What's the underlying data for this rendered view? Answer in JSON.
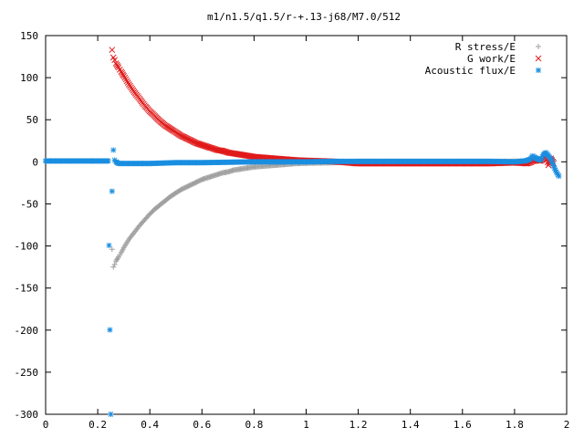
{
  "chart_data": {
    "type": "scatter",
    "title": "m1/n1.5/q1.5/r-+.13-j68/M7.0/512",
    "xlabel": "",
    "ylabel": "",
    "xlim": [
      0,
      2
    ],
    "ylim": [
      -300,
      150
    ],
    "x_ticks": [
      "0",
      "0.2",
      "0.4",
      "0.6",
      "0.8",
      "1",
      "1.2",
      "1.4",
      "1.6",
      "1.8",
      "2"
    ],
    "y_ticks": [
      "150",
      "100",
      "50",
      "0",
      "-50",
      "-100",
      "-150",
      "-200",
      "-250",
      "-300"
    ],
    "grid": false,
    "legend_position": "top-right",
    "series": [
      {
        "name": "R stress/E",
        "marker": "plus",
        "color": "#a0a0a0",
        "points": [
          [
            0.255,
            -104
          ],
          [
            0.26,
            -125
          ],
          [
            0.265,
            -122
          ],
          [
            0.27,
            -118
          ],
          [
            0.28,
            -113
          ],
          [
            0.29,
            -108
          ],
          [
            0.3,
            -102
          ],
          [
            0.32,
            -92
          ],
          [
            0.34,
            -84
          ],
          [
            0.36,
            -76
          ],
          [
            0.38,
            -69
          ],
          [
            0.4,
            -62
          ],
          [
            0.42,
            -56
          ],
          [
            0.44,
            -51
          ],
          [
            0.46,
            -46
          ],
          [
            0.48,
            -41
          ],
          [
            0.5,
            -37
          ],
          [
            0.52,
            -33
          ],
          [
            0.54,
            -30
          ],
          [
            0.56,
            -27
          ],
          [
            0.58,
            -24
          ],
          [
            0.6,
            -21
          ],
          [
            0.62,
            -19
          ],
          [
            0.64,
            -17
          ],
          [
            0.66,
            -15
          ],
          [
            0.68,
            -13
          ],
          [
            0.7,
            -12
          ],
          [
            0.72,
            -10
          ],
          [
            0.74,
            -9
          ],
          [
            0.76,
            -8
          ],
          [
            0.78,
            -7
          ],
          [
            0.8,
            -6
          ],
          [
            0.84,
            -5
          ],
          [
            0.88,
            -4
          ],
          [
            0.92,
            -3
          ],
          [
            0.96,
            -2
          ],
          [
            1.0,
            -1.5
          ],
          [
            1.1,
            -1
          ],
          [
            1.2,
            0.5
          ],
          [
            1.3,
            0.5
          ],
          [
            1.4,
            0.5
          ],
          [
            1.5,
            0.5
          ],
          [
            1.6,
            0.5
          ],
          [
            1.7,
            0.5
          ],
          [
            1.8,
            0.5
          ],
          [
            1.85,
            1
          ],
          [
            1.9,
            3
          ],
          [
            1.92,
            4
          ],
          [
            1.94,
            5
          ],
          [
            1.95,
            2
          ]
        ]
      },
      {
        "name": "G work/E",
        "marker": "cross",
        "color": "#e01a1a",
        "points": [
          [
            0.255,
            133
          ],
          [
            0.26,
            124
          ],
          [
            0.265,
            121
          ],
          [
            0.27,
            117
          ],
          [
            0.28,
            112
          ],
          [
            0.29,
            107
          ],
          [
            0.3,
            102
          ],
          [
            0.32,
            92
          ],
          [
            0.34,
            83
          ],
          [
            0.36,
            75
          ],
          [
            0.38,
            67
          ],
          [
            0.4,
            60
          ],
          [
            0.42,
            54
          ],
          [
            0.44,
            48
          ],
          [
            0.46,
            43
          ],
          [
            0.48,
            39
          ],
          [
            0.5,
            35
          ],
          [
            0.52,
            31
          ],
          [
            0.54,
            28
          ],
          [
            0.56,
            25
          ],
          [
            0.58,
            22
          ],
          [
            0.6,
            20
          ],
          [
            0.62,
            18
          ],
          [
            0.64,
            16
          ],
          [
            0.66,
            14
          ],
          [
            0.68,
            13
          ],
          [
            0.7,
            11
          ],
          [
            0.72,
            10
          ],
          [
            0.74,
            9
          ],
          [
            0.76,
            8
          ],
          [
            0.78,
            7
          ],
          [
            0.8,
            6
          ],
          [
            0.84,
            5
          ],
          [
            0.88,
            4
          ],
          [
            0.92,
            3
          ],
          [
            0.96,
            2
          ],
          [
            1.0,
            1.5
          ],
          [
            1.1,
            0.5
          ],
          [
            1.2,
            -2
          ],
          [
            1.3,
            -2
          ],
          [
            1.4,
            -2
          ],
          [
            1.5,
            -2
          ],
          [
            1.6,
            -2
          ],
          [
            1.7,
            -2
          ],
          [
            1.8,
            -1
          ],
          [
            1.85,
            -2
          ],
          [
            1.88,
            2
          ],
          [
            1.9,
            1
          ],
          [
            1.92,
            6
          ],
          [
            1.93,
            -4
          ],
          [
            1.94,
            4
          ],
          [
            1.95,
            -2
          ]
        ]
      },
      {
        "name": "Acoustic flux/E",
        "marker": "star",
        "color": "#1a8ee0",
        "points": [
          [
            0.0,
            1
          ],
          [
            0.05,
            1
          ],
          [
            0.1,
            1
          ],
          [
            0.15,
            1
          ],
          [
            0.2,
            1
          ],
          [
            0.24,
            1
          ],
          [
            0.25,
            -300
          ],
          [
            0.255,
            -35
          ],
          [
            0.26,
            14
          ],
          [
            0.265,
            2
          ],
          [
            0.27,
            0
          ],
          [
            0.28,
            -2
          ],
          [
            0.3,
            -2
          ],
          [
            0.35,
            -2
          ],
          [
            0.4,
            -2
          ],
          [
            0.45,
            -1.5
          ],
          [
            0.5,
            -1
          ],
          [
            0.6,
            -1
          ],
          [
            0.7,
            -0.5
          ],
          [
            0.8,
            0
          ],
          [
            0.9,
            0
          ],
          [
            1.0,
            0
          ],
          [
            1.1,
            0.5
          ],
          [
            1.2,
            0.5
          ],
          [
            1.3,
            0.5
          ],
          [
            1.4,
            0.5
          ],
          [
            1.5,
            0.5
          ],
          [
            1.6,
            0.5
          ],
          [
            1.7,
            0.5
          ],
          [
            1.8,
            0
          ],
          [
            1.84,
            1
          ],
          [
            1.86,
            3
          ],
          [
            1.87,
            7
          ],
          [
            1.88,
            5
          ],
          [
            1.89,
            3
          ],
          [
            1.9,
            2
          ],
          [
            1.91,
            8
          ],
          [
            1.92,
            11
          ],
          [
            1.93,
            7
          ],
          [
            1.94,
            3
          ],
          [
            1.95,
            -5
          ],
          [
            1.96,
            -12
          ],
          [
            1.97,
            -17
          ]
        ]
      }
    ]
  }
}
